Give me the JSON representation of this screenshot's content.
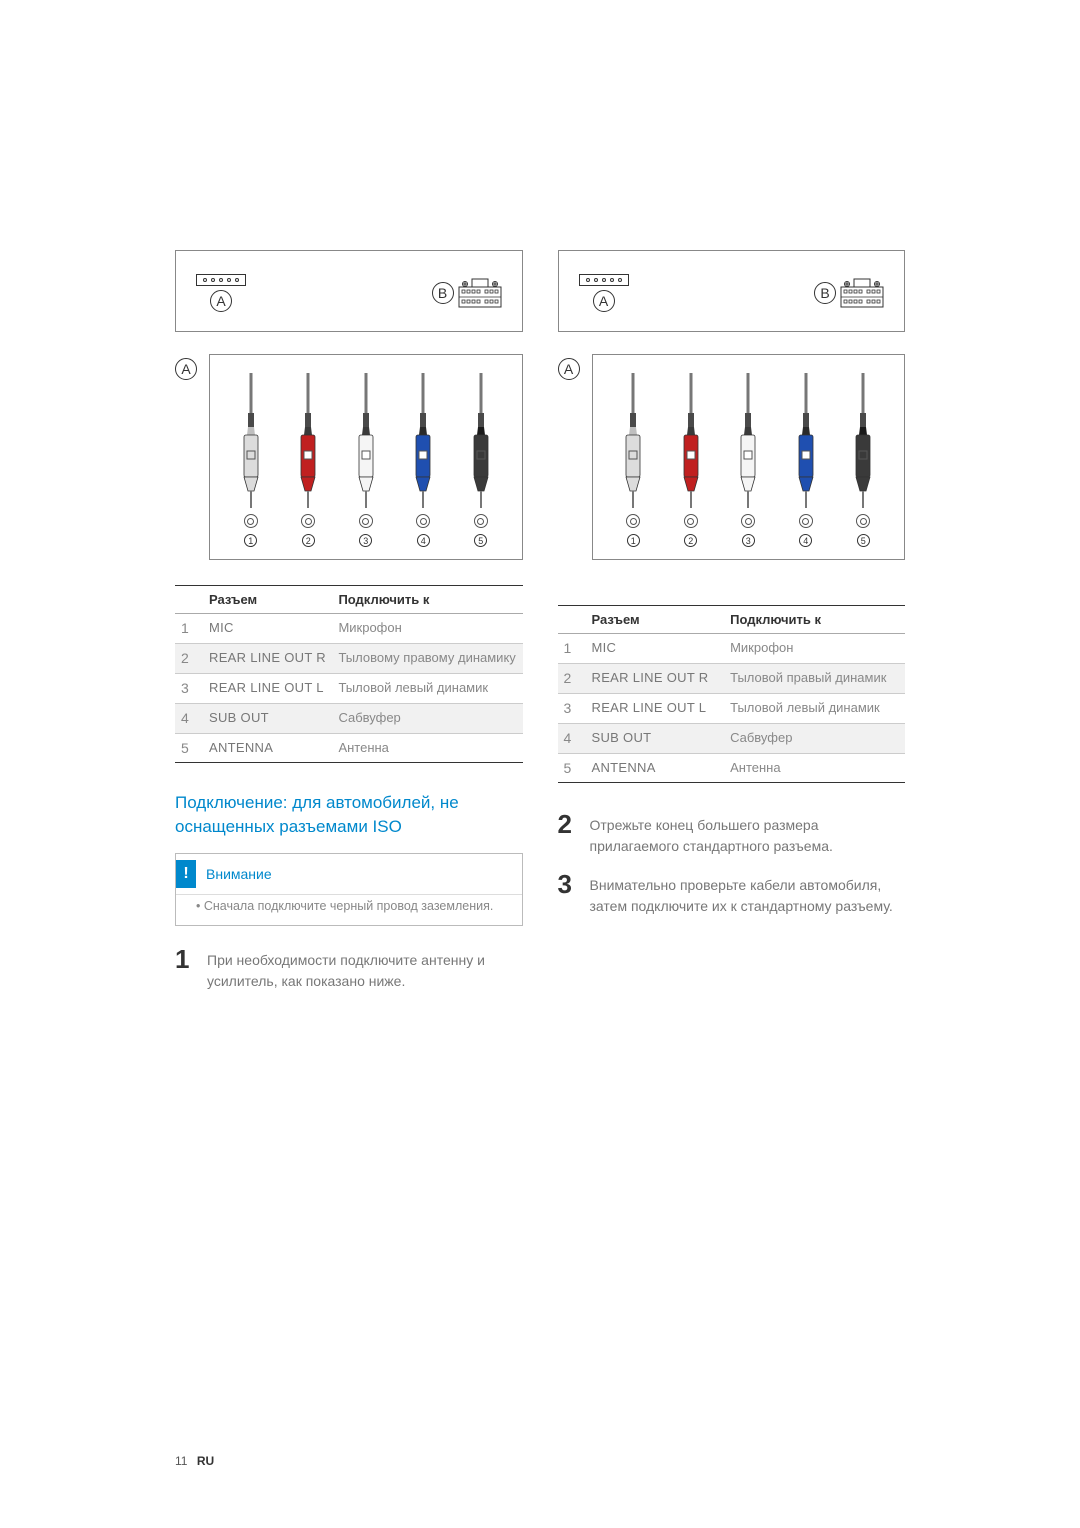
{
  "diagram": {
    "label_a": "A",
    "label_b": "B",
    "hole_count": 5,
    "connectors": [
      {
        "num": "1",
        "body": "#dcdcdc",
        "tip": "#bfbfbf",
        "sleeve": "#4a4a4a",
        "square": false
      },
      {
        "num": "2",
        "body": "#c02020",
        "tip": "#3a3a3a",
        "sleeve": "#4a4a4a",
        "square": true
      },
      {
        "num": "3",
        "body": "#f5f5f5",
        "tip": "#3a3a3a",
        "sleeve": "#4a4a4a",
        "square": true
      },
      {
        "num": "4",
        "body": "#1f4fb0",
        "tip": "#2a2a2a",
        "sleeve": "#4a4a4a",
        "square": true
      },
      {
        "num": "5",
        "body": "#3a3a3a",
        "tip": "#1a1a1a",
        "sleeve": "#4a4a4a",
        "square": false
      }
    ]
  },
  "table_left": {
    "headers": [
      "",
      "Разъем",
      "Подключить к"
    ],
    "rows": [
      {
        "n": "1",
        "c": "MIC",
        "d": "Микрофон",
        "alt": false
      },
      {
        "n": "2",
        "c": "REAR LINE OUT R",
        "d": "Тыловому правому динамику",
        "alt": true
      },
      {
        "n": "3",
        "c": "REAR LINE OUT L",
        "d": "Тыловой левый динамик",
        "alt": false
      },
      {
        "n": "4",
        "c": "SUB OUT",
        "d": "Сабвуфер",
        "alt": true
      },
      {
        "n": "5",
        "c": "ANTENNA",
        "d": "Антенна",
        "alt": false
      }
    ]
  },
  "table_right": {
    "headers": [
      "",
      "Разъем",
      "Подключить к"
    ],
    "rows": [
      {
        "n": "1",
        "c": "MIC",
        "d": "Микрофон",
        "alt": false
      },
      {
        "n": "2",
        "c": "REAR LINE OUT R",
        "d": "Тыловой правый динамик",
        "alt": true
      },
      {
        "n": "3",
        "c": "REAR LINE OUT L",
        "d": "Тыловой левый динамик",
        "alt": false
      },
      {
        "n": "4",
        "c": "SUB OUT",
        "d": "Сабвуфер",
        "alt": true
      },
      {
        "n": "5",
        "c": "ANTENNA",
        "d": "Антенна",
        "alt": false
      }
    ]
  },
  "left": {
    "heading": "Подключение: для автомобилей, не оснащенных разъемами ISO",
    "note_title": "Внимание",
    "note_body": "Сначала подключите черный провод заземления.",
    "step1_num": "1",
    "step1_text": "При необходимости подключите антенну и усилитель, как показано ниже."
  },
  "right": {
    "step2_num": "2",
    "step2_text": "Отрежьте конец большего размера прилагаемого стандартного разъема.",
    "step3_num": "3",
    "step3_text": "Внимательно проверьте кабели автомобиля, затем подключите их к стандартному разъему."
  },
  "footer": {
    "page": "11",
    "lang": "RU"
  }
}
